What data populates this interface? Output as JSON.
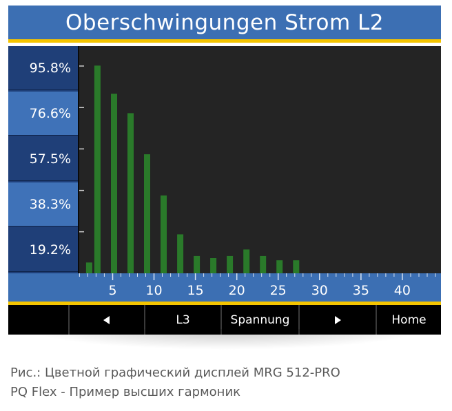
{
  "header": {
    "title": "Oberschwingungen Strom L2"
  },
  "chart_data": {
    "type": "bar",
    "title": "Oberschwingungen Strom L2",
    "y_ticks": [
      "95.8%",
      "76.6%",
      "57.5%",
      "38.3%",
      "19.2%"
    ],
    "y_tick_values": [
      95.8,
      76.6,
      57.5,
      38.3,
      19.2
    ],
    "ylim": [
      0,
      105
    ],
    "x_ticks": [
      "5",
      "10",
      "15",
      "20",
      "25",
      "30",
      "35",
      "40"
    ],
    "x_tick_values": [
      5,
      10,
      15,
      20,
      25,
      30,
      35,
      40
    ],
    "xlim": [
      0.8,
      44.5
    ],
    "x": [
      2,
      3,
      5,
      7,
      9,
      11,
      13,
      15,
      17,
      19,
      21,
      23,
      25,
      27
    ],
    "values": [
      5,
      96,
      83,
      74,
      55,
      36,
      18,
      8,
      7,
      8,
      11,
      8,
      6,
      6
    ],
    "bar_color": "#2a7a2a"
  },
  "softkeys": [
    {
      "label": "",
      "icon": ""
    },
    {
      "label": "",
      "icon": "triangle-left-icon"
    },
    {
      "label": "L3",
      "icon": ""
    },
    {
      "label": "Spannung",
      "icon": ""
    },
    {
      "label": "",
      "icon": "triangle-right-icon"
    },
    {
      "label": "Home",
      "icon": ""
    }
  ],
  "caption": {
    "line1": "Рис.: Цветной графический дисплей MRG 512-PRO",
    "line2": "PQ Flex - Пример высших гармоник"
  }
}
